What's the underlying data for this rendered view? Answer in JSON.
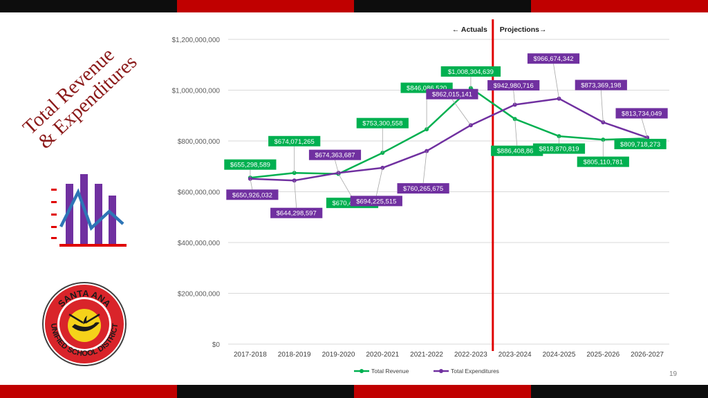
{
  "slide": {
    "title_line1": "Total Revenue",
    "title_line2": "& Expenditures",
    "page_number": "19",
    "logo_text_top": "SANTA ANA",
    "logo_text_bottom": "UNIFIED SCHOOL DISTRICT",
    "colors": {
      "red": "#c00000",
      "black": "#0d0d0d",
      "title": "#8b1a1a",
      "icon_purple": "#7030a0",
      "icon_blue": "#2e75b6",
      "icon_red": "#e00000"
    }
  },
  "chart_data": {
    "type": "line",
    "categories": [
      "2017-2018",
      "2018-2019",
      "2019-2020",
      "2020-2021",
      "2021-2022",
      "2022-2023",
      "2023-2024",
      "2024-2025",
      "2025-2026",
      "2026-2027"
    ],
    "ylim": [
      0,
      1200000000
    ],
    "yticks": [
      0,
      200000000,
      400000000,
      600000000,
      800000000,
      1000000000,
      1200000000
    ],
    "ytick_labels": [
      "$0",
      "$200,000,000",
      "$400,000,000",
      "$600,000,000",
      "$800,000,000",
      "$1,000,000,000",
      "$1,200,000,000"
    ],
    "grid": true,
    "legend_position": "bottom",
    "actuals_label": "Actuals",
    "projections_label": "Projections",
    "divider_after_category": "2022-2023",
    "series": [
      {
        "name": "Total Revenue",
        "color": "#00b050",
        "values": [
          655298589,
          674071265,
          670402985,
          753300558,
          846086520,
          1008304639,
          886408861,
          818870819,
          805110781,
          809718273
        ],
        "labels": [
          "$655,298,589",
          "$674,071,265",
          "$670,402,985",
          "$753,300,558",
          "$846,086,520",
          "$1,008,304,639",
          "$886,408,861",
          "$818,870,819",
          "$805,110,781",
          "$809,718,273"
        ]
      },
      {
        "name": "Total Expenditures",
        "color": "#7030a0",
        "values": [
          650926032,
          644298597,
          674363687,
          694225515,
          760265675,
          862015141,
          942980716,
          966674342,
          873369198,
          813734049
        ],
        "labels": [
          "$650,926,032",
          "$644,298,597",
          "$674,363,687",
          "$694,225,515",
          "$760,265,675",
          "$862,015,141",
          "$942,980,716",
          "$966,674,342",
          "$873,369,198",
          "$813,734,049"
        ]
      }
    ]
  }
}
